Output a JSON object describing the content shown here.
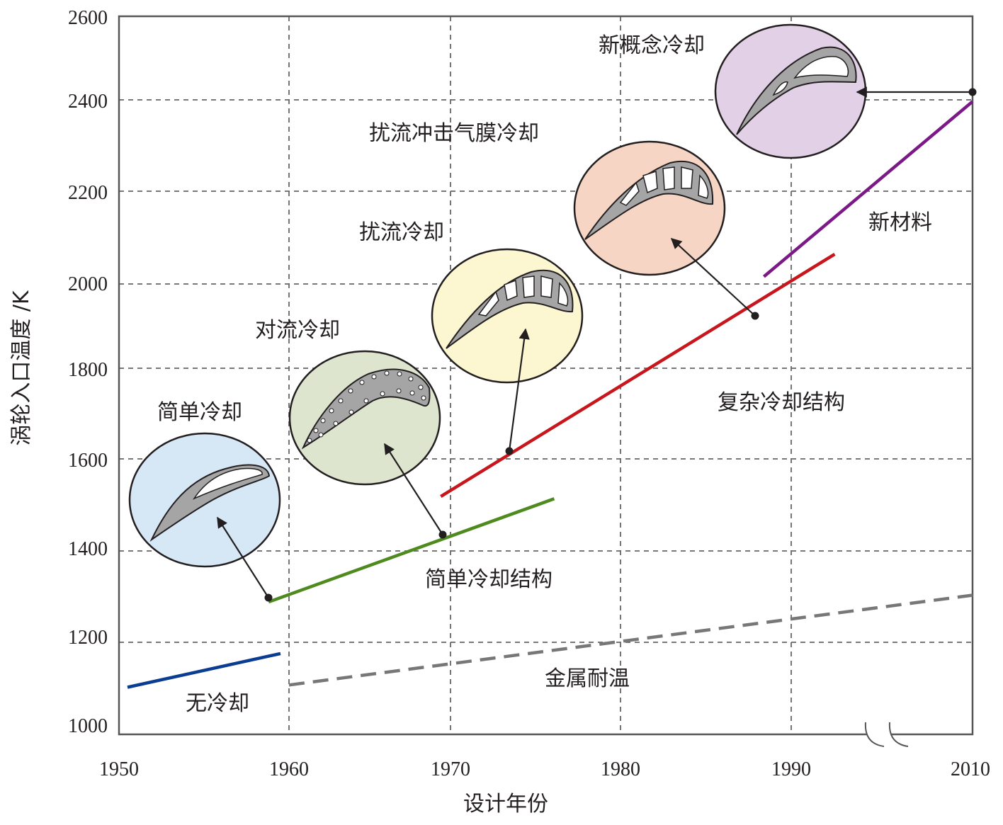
{
  "chart_data": {
    "type": "line",
    "xlabel": "设计年份",
    "ylabel": "涡轮入口温度 /K",
    "xlim": [
      1950,
      2010
    ],
    "ylim": [
      1000,
      2600
    ],
    "x_ticks": [
      "1950",
      "1960",
      "1970",
      "1980",
      "1990",
      "2010"
    ],
    "y_ticks": [
      "1000",
      "1200",
      "1400",
      "1600",
      "1800",
      "2000",
      "2200",
      "2400",
      "2600"
    ],
    "grid": "dashed",
    "axis_break": "between 1990 and 2010",
    "series": [
      {
        "name": "无冷却",
        "color": "#0a3d91",
        "style": "solid",
        "x": [
          1950.5,
          1959.5
        ],
        "y": [
          1105,
          1180
        ]
      },
      {
        "name": "简单冷却结构",
        "color": "#4e8a1e",
        "style": "solid",
        "x": [
          1958.8,
          1976.1
        ],
        "y": [
          1295,
          1525
        ]
      },
      {
        "name": "复杂冷却结构",
        "color": "#c8161d",
        "style": "solid",
        "x": [
          1969.4,
          1994.8
        ],
        "y": [
          1530,
          2070
        ]
      },
      {
        "name": "新材料",
        "color": "#7b1a87",
        "style": "solid",
        "x": [
          1988.4,
          2010
        ],
        "y": [
          2020,
          2410
        ]
      },
      {
        "name": "金属耐温",
        "color": "#777777",
        "style": "dashed",
        "x": [
          1960,
          2010
        ],
        "y": [
          1110,
          1310
        ]
      }
    ],
    "annotations": [
      {
        "text": "简单冷却",
        "fill": "#d6e7f6"
      },
      {
        "text": "对流冷却",
        "fill": "#dde5cf"
      },
      {
        "text": "扰流冷却",
        "fill": "#fcf7d1"
      },
      {
        "text": "扰流冲击气膜冷却",
        "fill": "#f6d5c4"
      },
      {
        "text": "新概念冷却",
        "fill": "#e2d1e6"
      }
    ]
  }
}
